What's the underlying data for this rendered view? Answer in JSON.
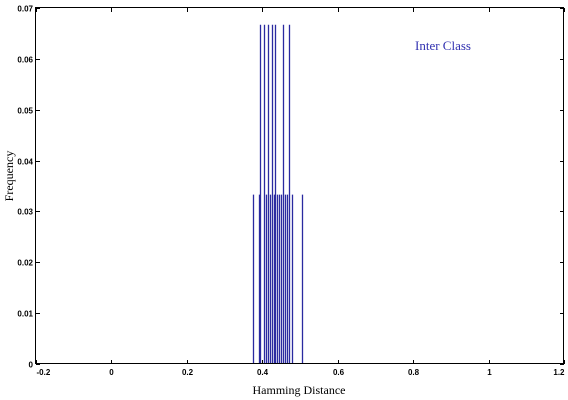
{
  "chart_data": {
    "type": "bar",
    "title": "",
    "xlabel": "Hamming Distance",
    "ylabel": "Frequency",
    "xlim": [
      -0.2,
      1.2
    ],
    "ylim": [
      0,
      0.07
    ],
    "xticks": [
      "-0.2",
      "0",
      "0.2",
      "0.4",
      "0.6",
      "0.8",
      "1",
      "1.2"
    ],
    "yticks": [
      "0",
      "0.01",
      "0.02",
      "0.03",
      "0.04",
      "0.05",
      "0.06",
      "0.07"
    ],
    "grid": false,
    "legend": {
      "label": "Inter Class",
      "placement": "top-right"
    },
    "series_color": "#2a2aa0",
    "series": [
      {
        "name": "Inter Class",
        "x": [
          0.375,
          0.39,
          0.395,
          0.405,
          0.41,
          0.415,
          0.42,
          0.425,
          0.43,
          0.435,
          0.44,
          0.445,
          0.45,
          0.455,
          0.46,
          0.465,
          0.47,
          0.48,
          0.505
        ],
        "values": [
          0.0333,
          0.0333,
          0.0667,
          0.0667,
          0.0333,
          0.0667,
          0.0333,
          0.0667,
          0.0333,
          0.0667,
          0.0333,
          0.0333,
          0.0333,
          0.0667,
          0.0333,
          0.0333,
          0.0667,
          0.0333,
          0.0333
        ]
      }
    ]
  }
}
